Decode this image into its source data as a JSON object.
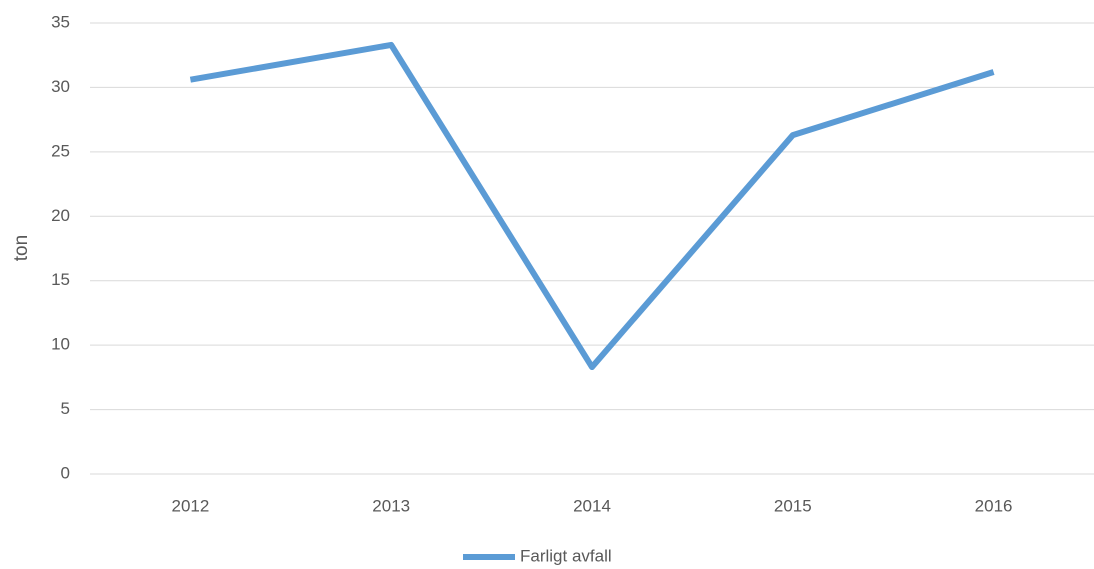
{
  "chart_data": {
    "type": "line",
    "y_label": "ton",
    "categories": [
      "2012",
      "2013",
      "2014",
      "2015",
      "2016"
    ],
    "series": [
      {
        "name": "Farligt avfall",
        "color": "#5b9bd5",
        "values": [
          30.6,
          33.3,
          8.3,
          26.3,
          31.2
        ]
      }
    ],
    "ylim": [
      0,
      35
    ],
    "yticks": [
      0,
      5,
      10,
      15,
      20,
      25,
      30,
      35
    ],
    "grid": true,
    "legend": "bottom"
  }
}
